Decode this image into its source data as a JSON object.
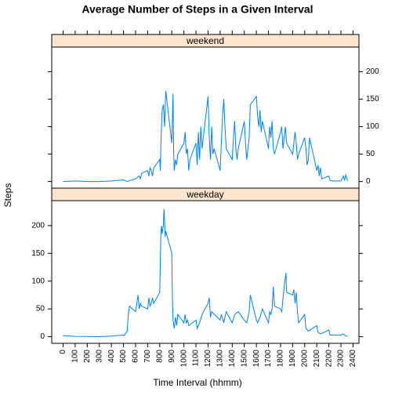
{
  "chart_data": {
    "type": "line",
    "title": "Average Number of Steps in a Given Interval",
    "xlabel": "Time Interval (hhmm)",
    "ylabel": "Steps",
    "color": "#0080ff",
    "strip_color": "#ffe5cc",
    "xlim": [
      -94,
      2449
    ],
    "xticks": [
      0,
      100,
      200,
      300,
      400,
      500,
      600,
      700,
      800,
      900,
      1000,
      1100,
      1200,
      1300,
      1400,
      1500,
      1600,
      1700,
      1800,
      1900,
      2000,
      2100,
      2200,
      2300,
      2400
    ],
    "ylim": [
      -12,
      245
    ],
    "yticks": [
      0,
      50,
      100,
      150,
      200
    ],
    "panels": [
      {
        "name": "weekend",
        "x": [
          0,
          100,
          200,
          300,
          400,
          500,
          530,
          600,
          630,
          640,
          650,
          700,
          710,
          720,
          730,
          740,
          750,
          800,
          805,
          810,
          820,
          830,
          840,
          850,
          900,
          910,
          915,
          920,
          930,
          940,
          950,
          1000,
          1010,
          1020,
          1030,
          1040,
          1050,
          1100,
          1110,
          1120,
          1130,
          1140,
          1150,
          1200,
          1210,
          1220,
          1230,
          1240,
          1250,
          1300,
          1310,
          1320,
          1330,
          1340,
          1350,
          1400,
          1410,
          1420,
          1430,
          1440,
          1450,
          1500,
          1510,
          1520,
          1530,
          1540,
          1550,
          1600,
          1610,
          1620,
          1630,
          1640,
          1650,
          1700,
          1710,
          1720,
          1730,
          1740,
          1750,
          1800,
          1810,
          1820,
          1830,
          1840,
          1850,
          1900,
          1910,
          1920,
          1930,
          1940,
          1950,
          2000,
          2010,
          2020,
          2030,
          2040,
          2050,
          2100,
          2110,
          2120,
          2130,
          2140,
          2200,
          2210,
          2230,
          2300,
          2320,
          2330,
          2340,
          2355
        ],
        "values": [
          0,
          1,
          0,
          0,
          1,
          3,
          0,
          5,
          10,
          5,
          15,
          20,
          10,
          25,
          20,
          10,
          25,
          40,
          20,
          70,
          130,
          140,
          100,
          165,
          70,
          160,
          60,
          20,
          40,
          30,
          50,
          70,
          90,
          50,
          60,
          20,
          40,
          70,
          30,
          90,
          40,
          100,
          60,
          155,
          80,
          40,
          100,
          50,
          60,
          20,
          70,
          120,
          150,
          100,
          60,
          40,
          80,
          110,
          60,
          40,
          60,
          110,
          70,
          40,
          60,
          80,
          140,
          155,
          120,
          100,
          130,
          90,
          110,
          60,
          100,
          80,
          110,
          60,
          50,
          90,
          100,
          60,
          80,
          100,
          70,
          50,
          70,
          90,
          70,
          40,
          50,
          80,
          60,
          30,
          40,
          80,
          70,
          20,
          30,
          10,
          25,
          5,
          10,
          2,
          1,
          1,
          10,
          2,
          12,
          1
        ]
      },
      {
        "name": "weekday",
        "x": [
          0,
          100,
          200,
          300,
          400,
          500,
          505,
          530,
          540,
          550,
          600,
          610,
          620,
          630,
          640,
          650,
          700,
          710,
          720,
          730,
          740,
          750,
          800,
          810,
          815,
          820,
          830,
          835,
          840,
          845,
          850,
          900,
          905,
          910,
          920,
          930,
          940,
          950,
          1000,
          1010,
          1020,
          1030,
          1040,
          1100,
          1110,
          1130,
          1150,
          1200,
          1210,
          1220,
          1230,
          1300,
          1310,
          1330,
          1350,
          1400,
          1420,
          1450,
          1500,
          1520,
          1540,
          1550,
          1600,
          1610,
          1630,
          1650,
          1700,
          1710,
          1720,
          1730,
          1740,
          1750,
          1800,
          1810,
          1830,
          1845,
          1850,
          1900,
          1910,
          1920,
          1930,
          1940,
          1950,
          2000,
          2010,
          2030,
          2100,
          2110,
          2130,
          2200,
          2210,
          2300,
          2320,
          2340,
          2355
        ],
        "values": [
          2,
          0.5,
          0.3,
          0,
          1,
          3,
          2,
          10,
          40,
          55,
          45,
          60,
          75,
          50,
          60,
          55,
          50,
          70,
          55,
          60,
          70,
          60,
          80,
          190,
          200,
          185,
          200,
          230,
          210,
          180,
          190,
          150,
          70,
          30,
          15,
          35,
          20,
          40,
          25,
          40,
          25,
          30,
          20,
          30,
          15,
          25,
          40,
          60,
          70,
          35,
          45,
          30,
          40,
          25,
          45,
          25,
          40,
          45,
          30,
          25,
          45,
          75,
          30,
          25,
          35,
          50,
          25,
          45,
          40,
          50,
          90,
          55,
          50,
          45,
          90,
          115,
          80,
          75,
          85,
          60,
          80,
          45,
          25,
          40,
          15,
          10,
          20,
          8,
          5,
          12,
          3,
          3,
          5,
          1,
          1
        ]
      }
    ]
  }
}
